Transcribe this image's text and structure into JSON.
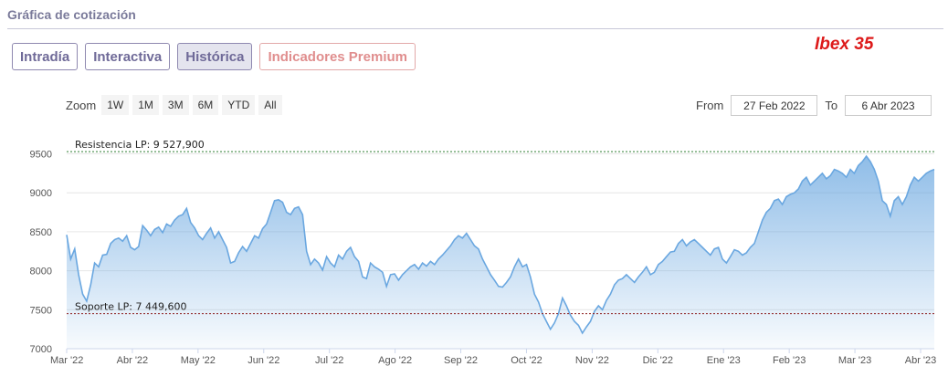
{
  "header": {
    "title": "Gráfica de cotización"
  },
  "tabs": [
    {
      "label": "Intradía",
      "active": false
    },
    {
      "label": "Interactiva",
      "active": false
    },
    {
      "label": "Histórica",
      "active": true
    },
    {
      "label": "Indicadores Premium",
      "active": false
    }
  ],
  "ticker": "Ibex 35",
  "zoom": {
    "label": "Zoom",
    "buttons": [
      "1W",
      "1M",
      "3M",
      "6M",
      "YTD",
      "All"
    ]
  },
  "range": {
    "from_label": "From",
    "from_value": "27 Feb 2022",
    "to_label": "To",
    "to_value": "6 Abr 2023"
  },
  "colors": {
    "line": "#6aa7e0",
    "resistance": "#2e7d32",
    "support": "#8b1a1a",
    "ticker": "#dd1a1a"
  },
  "chart_data": {
    "type": "area",
    "ylim": [
      7000,
      9600
    ],
    "yticks": [
      7000,
      7500,
      8000,
      8500,
      9000,
      9500
    ],
    "xlabels": [
      "Mar '22",
      "Abr '22",
      "May '22",
      "Jun '22",
      "Jul '22",
      "Ago '22",
      "Sep '22",
      "Oct '22",
      "Nov '22",
      "Dic '22",
      "Ene '23",
      "Feb '23",
      "Mar '23",
      "Abr '23"
    ],
    "grid": true,
    "resistance": {
      "label": "Resistencia LP: 9 527,900",
      "value": 9527.9
    },
    "support": {
      "label": "Soporte LP: 7 449,600",
      "value": 7449.6
    },
    "values": [
      8460,
      8150,
      8280,
      7950,
      7700,
      7610,
      7820,
      8100,
      8050,
      8200,
      8210,
      8350,
      8400,
      8420,
      8380,
      8450,
      8300,
      8270,
      8310,
      8580,
      8520,
      8450,
      8530,
      8560,
      8490,
      8600,
      8570,
      8650,
      8700,
      8720,
      8800,
      8620,
      8550,
      8450,
      8400,
      8480,
      8550,
      8420,
      8500,
      8400,
      8300,
      8100,
      8120,
      8230,
      8310,
      8250,
      8350,
      8450,
      8420,
      8540,
      8600,
      8750,
      8900,
      8910,
      8880,
      8750,
      8720,
      8800,
      8820,
      8720,
      8250,
      8080,
      8150,
      8100,
      8010,
      8180,
      8100,
      8050,
      8200,
      8150,
      8250,
      8300,
      8180,
      8120,
      7920,
      7900,
      8100,
      8050,
      8020,
      7980,
      7800,
      7950,
      7960,
      7880,
      7950,
      8000,
      8050,
      8080,
      8020,
      8100,
      8060,
      8120,
      8080,
      8150,
      8200,
      8260,
      8320,
      8400,
      8450,
      8420,
      8480,
      8400,
      8320,
      8280,
      8150,
      8050,
      7950,
      7880,
      7800,
      7790,
      7850,
      7920,
      8050,
      8150,
      8050,
      8080,
      7920,
      7700,
      7600,
      7450,
      7350,
      7250,
      7330,
      7450,
      7650,
      7550,
      7430,
      7350,
      7300,
      7200,
      7280,
      7350,
      7480,
      7550,
      7500,
      7620,
      7700,
      7820,
      7880,
      7900,
      7950,
      7900,
      7850,
      7920,
      7980,
      8050,
      7950,
      7980,
      8080,
      8120,
      8180,
      8240,
      8250,
      8350,
      8400,
      8320,
      8370,
      8400,
      8350,
      8300,
      8250,
      8200,
      8280,
      8300,
      8150,
      8100,
      8180,
      8270,
      8250,
      8200,
      8230,
      8300,
      8350,
      8500,
      8650,
      8750,
      8800,
      8900,
      8920,
      8850,
      8950,
      8980,
      9000,
      9050,
      9150,
      9200,
      9100,
      9150,
      9200,
      9250,
      9180,
      9220,
      9300,
      9280,
      9250,
      9200,
      9300,
      9250,
      9350,
      9400,
      9470,
      9400,
      9300,
      9150,
      8900,
      8850,
      8700,
      8900,
      8950,
      8850,
      8950,
      9100,
      9200,
      9150,
      9200,
      9250,
      9280,
      9300
    ]
  }
}
